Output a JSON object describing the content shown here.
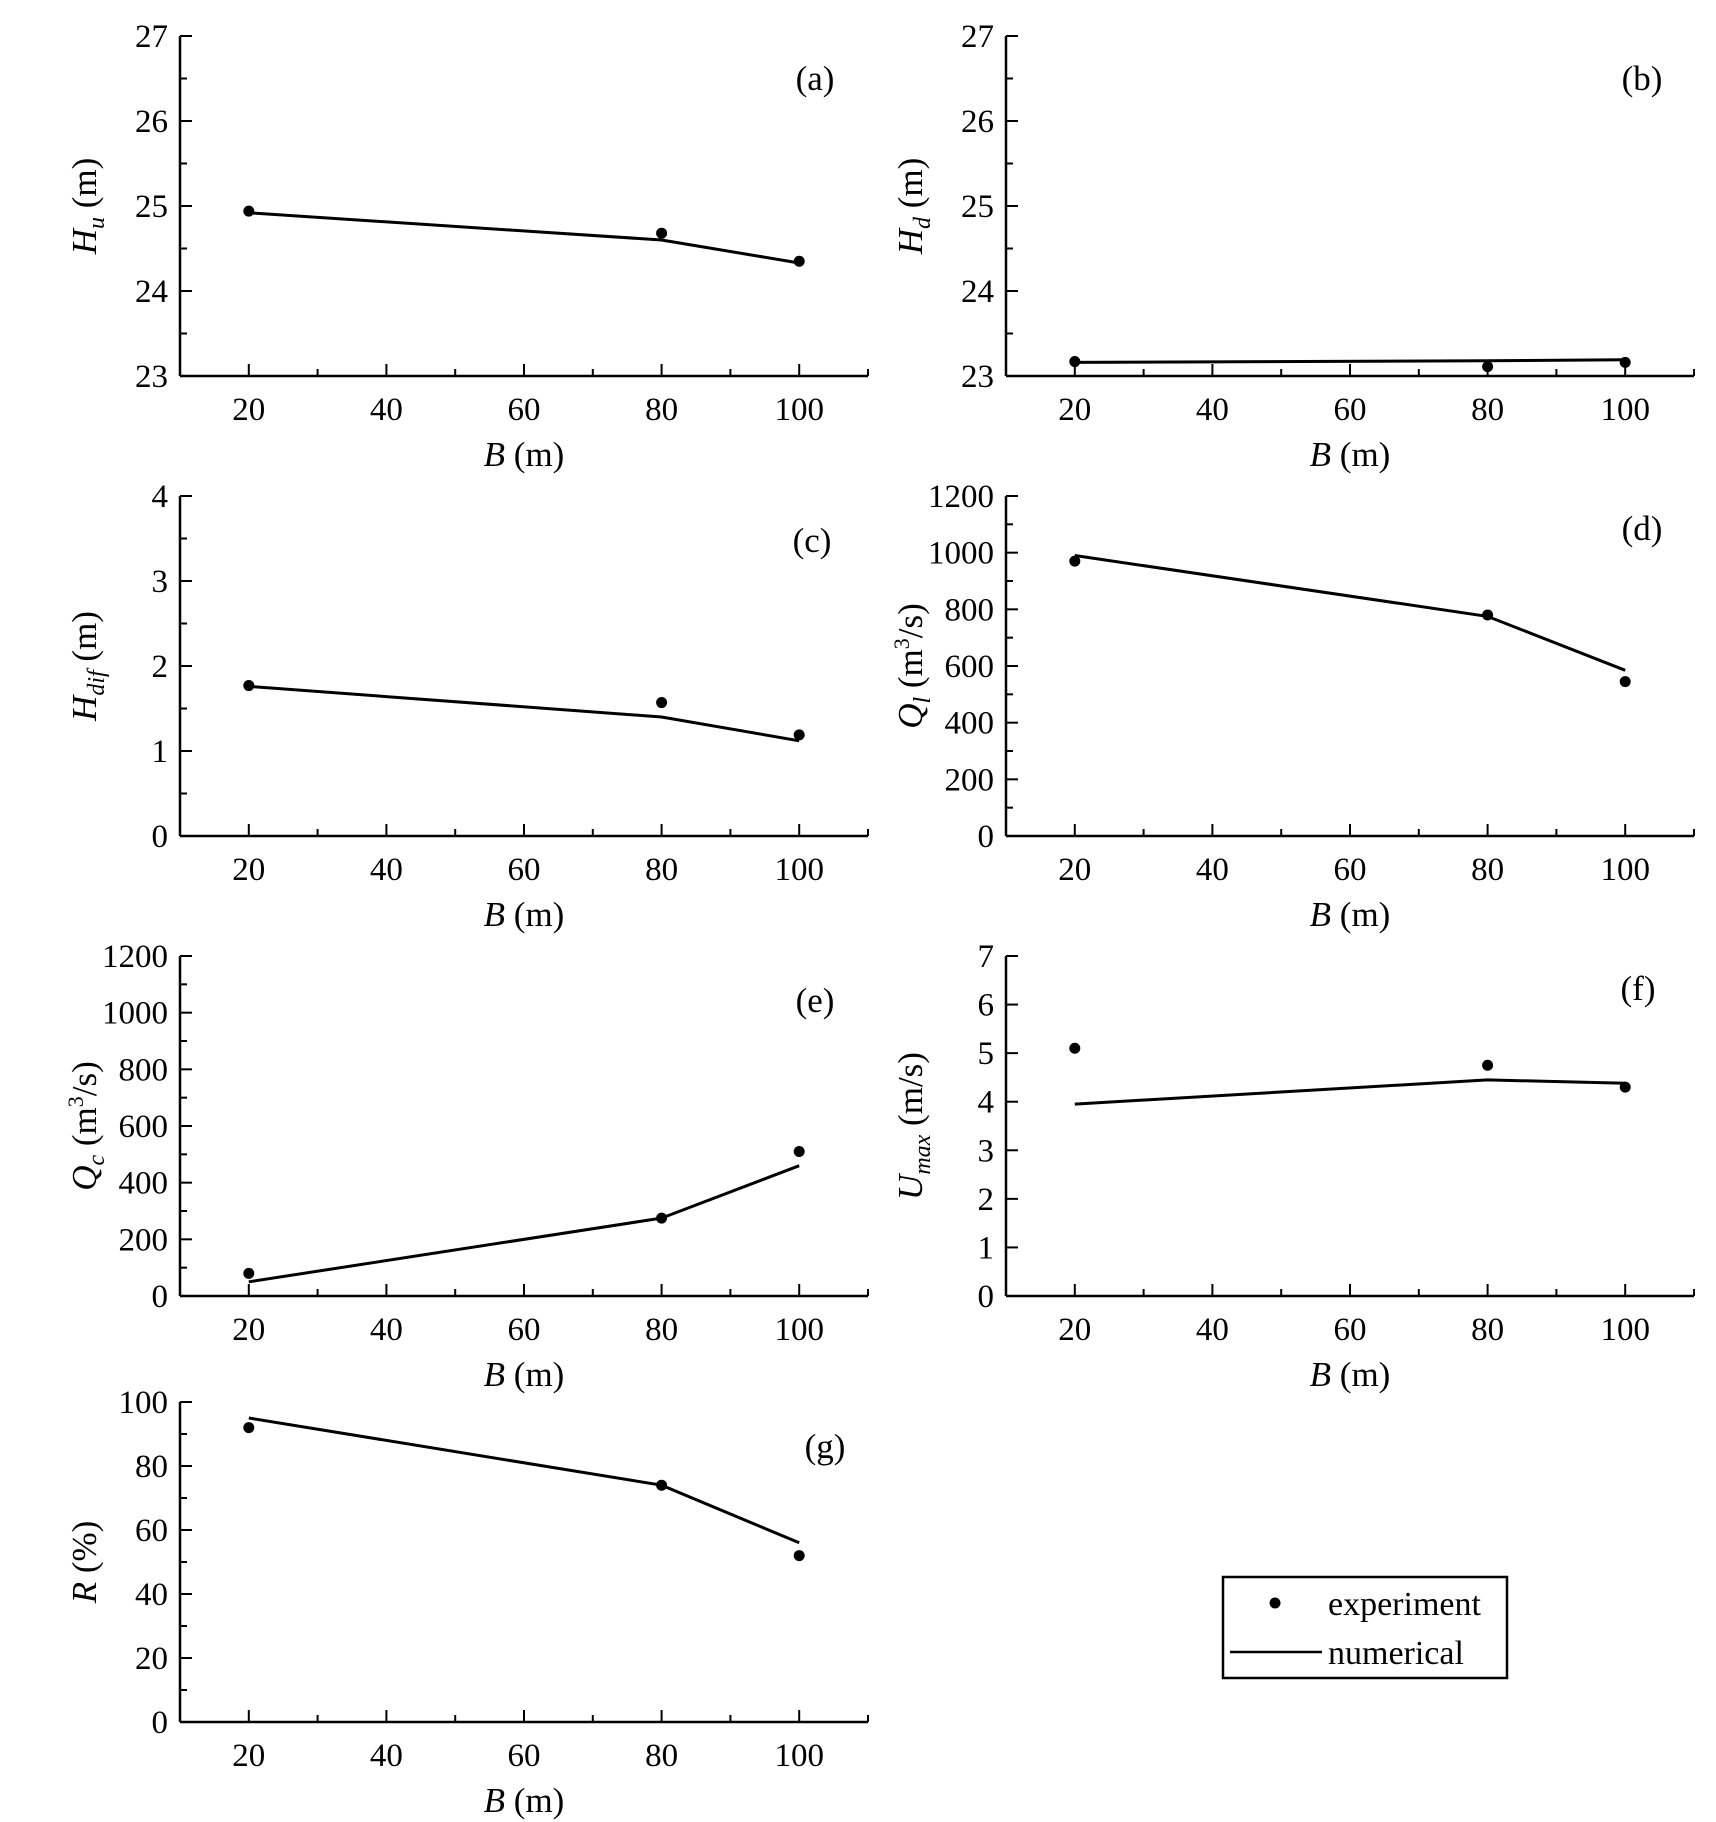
{
  "colors": {
    "ink": "#000000",
    "background": "#ffffff"
  },
  "legend": {
    "experiment": "experiment",
    "numerical": "numerical"
  },
  "chart_data": [
    {
      "panel": "(a)",
      "type": "line",
      "xlabel": {
        "main": "B",
        "rest": " (m)"
      },
      "ylabel": {
        "main": "H",
        "sub": "u",
        "rest": " (m)"
      },
      "xlim": [
        10,
        110
      ],
      "ylim": [
        23,
        27
      ],
      "xticks": [
        20,
        40,
        60,
        80,
        100
      ],
      "xminor": [
        30,
        50,
        70,
        90,
        110
      ],
      "yticks": [
        23,
        24,
        25,
        26,
        27
      ],
      "yminor": [
        23.5,
        24.5,
        25.5,
        26.5
      ],
      "series": [
        {
          "name": "experiment",
          "style": "points",
          "x": [
            20,
            80,
            100
          ],
          "y": [
            24.94,
            24.68,
            24.35
          ]
        },
        {
          "name": "numerical",
          "style": "line",
          "x": [
            20,
            80,
            100
          ],
          "y": [
            24.92,
            24.6,
            24.33
          ]
        }
      ]
    },
    {
      "panel": "(b)",
      "type": "line",
      "xlabel": {
        "main": "B",
        "rest": " (m)"
      },
      "ylabel": {
        "main": "H",
        "sub": "d",
        "rest": " (m)"
      },
      "xlim": [
        10,
        110
      ],
      "ylim": [
        23,
        27
      ],
      "xticks": [
        20,
        40,
        60,
        80,
        100
      ],
      "xminor": [
        30,
        50,
        70,
        90,
        110
      ],
      "yticks": [
        23,
        24,
        25,
        26,
        27
      ],
      "yminor": [
        23.5,
        24.5,
        25.5,
        26.5
      ],
      "series": [
        {
          "name": "experiment",
          "style": "points",
          "x": [
            20,
            80,
            100
          ],
          "y": [
            23.17,
            23.11,
            23.16
          ]
        },
        {
          "name": "numerical",
          "style": "line",
          "x": [
            20,
            80,
            100
          ],
          "y": [
            23.16,
            23.18,
            23.19
          ]
        }
      ]
    },
    {
      "panel": "(c)",
      "type": "line",
      "xlabel": {
        "main": "B",
        "rest": " (m)"
      },
      "ylabel": {
        "main": "H",
        "sub": "dif",
        "rest": " (m)"
      },
      "xlim": [
        10,
        110
      ],
      "ylim": [
        0,
        4
      ],
      "xticks": [
        20,
        40,
        60,
        80,
        100
      ],
      "xminor": [
        30,
        50,
        70,
        90,
        110
      ],
      "yticks": [
        0,
        1,
        2,
        3,
        4
      ],
      "yminor": [
        0.5,
        1.5,
        2.5,
        3.5
      ],
      "series": [
        {
          "name": "experiment",
          "style": "points",
          "x": [
            20,
            80,
            100
          ],
          "y": [
            1.77,
            1.57,
            1.19
          ]
        },
        {
          "name": "numerical",
          "style": "line",
          "x": [
            20,
            80,
            100
          ],
          "y": [
            1.76,
            1.4,
            1.12
          ]
        }
      ]
    },
    {
      "panel": "(d)",
      "type": "line",
      "xlabel": {
        "main": "B",
        "rest": " (m)"
      },
      "ylabel": {
        "main": "Q",
        "sub": "l",
        "rest": " (m",
        "sup": "3",
        "tail": "/s)"
      },
      "xlim": [
        10,
        110
      ],
      "ylim": [
        0,
        1200
      ],
      "xticks": [
        20,
        40,
        60,
        80,
        100
      ],
      "xminor": [
        30,
        50,
        70,
        90,
        110
      ],
      "yticks": [
        0,
        200,
        400,
        600,
        800,
        1000,
        1200
      ],
      "yminor": [
        100,
        300,
        500,
        700,
        900,
        1100
      ],
      "series": [
        {
          "name": "experiment",
          "style": "points",
          "x": [
            20,
            80,
            100
          ],
          "y": [
            970,
            780,
            545
          ]
        },
        {
          "name": "numerical",
          "style": "line",
          "x": [
            20,
            80,
            100
          ],
          "y": [
            990,
            775,
            585
          ]
        }
      ]
    },
    {
      "panel": "(e)",
      "type": "line",
      "xlabel": {
        "main": "B",
        "rest": " (m)"
      },
      "ylabel": {
        "main": "Q",
        "sub": "c",
        "rest": " (m",
        "sup": "3",
        "tail": "/s)"
      },
      "xlim": [
        10,
        110
      ],
      "ylim": [
        0,
        1200
      ],
      "xticks": [
        20,
        40,
        60,
        80,
        100
      ],
      "xminor": [
        30,
        50,
        70,
        90,
        110
      ],
      "yticks": [
        0,
        200,
        400,
        600,
        800,
        1000,
        1200
      ],
      "yminor": [
        100,
        300,
        500,
        700,
        900,
        1100
      ],
      "series": [
        {
          "name": "experiment",
          "style": "points",
          "x": [
            20,
            80,
            100
          ],
          "y": [
            80,
            275,
            510
          ]
        },
        {
          "name": "numerical",
          "style": "line",
          "x": [
            20,
            80,
            100
          ],
          "y": [
            50,
            275,
            460
          ]
        }
      ]
    },
    {
      "panel": "(f)",
      "type": "line",
      "xlabel": {
        "main": "B",
        "rest": " (m)"
      },
      "ylabel": {
        "main": "U",
        "sub": "max",
        "rest": " (m/s)"
      },
      "xlim": [
        10,
        110
      ],
      "ylim": [
        0,
        7
      ],
      "xticks": [
        20,
        40,
        60,
        80,
        100
      ],
      "xminor": [
        30,
        50,
        70,
        90,
        110
      ],
      "yticks": [
        0,
        1,
        2,
        3,
        4,
        5,
        6,
        7
      ],
      "yminor": [],
      "series": [
        {
          "name": "experiment",
          "style": "points",
          "x": [
            20,
            80,
            100
          ],
          "y": [
            5.1,
            4.75,
            4.3
          ]
        },
        {
          "name": "numerical",
          "style": "line",
          "x": [
            20,
            80,
            100
          ],
          "y": [
            3.95,
            4.45,
            4.38
          ]
        }
      ]
    },
    {
      "panel": "(g)",
      "type": "line",
      "xlabel": {
        "main": "B",
        "rest": " (m)"
      },
      "ylabel": {
        "main": "R",
        "rest": " (%)"
      },
      "xlim": [
        10,
        110
      ],
      "ylim": [
        0,
        100
      ],
      "xticks": [
        20,
        40,
        60,
        80,
        100
      ],
      "xminor": [
        30,
        50,
        70,
        90,
        110
      ],
      "yticks": [
        0,
        20,
        40,
        60,
        80,
        100
      ],
      "yminor": [
        10,
        30,
        50,
        70,
        90
      ],
      "series": [
        {
          "name": "experiment",
          "style": "points",
          "x": [
            20,
            80,
            100
          ],
          "y": [
            92,
            74,
            52
          ]
        },
        {
          "name": "numerical",
          "style": "line",
          "x": [
            20,
            80,
            100
          ],
          "y": [
            95,
            74,
            56
          ]
        }
      ]
    }
  ]
}
